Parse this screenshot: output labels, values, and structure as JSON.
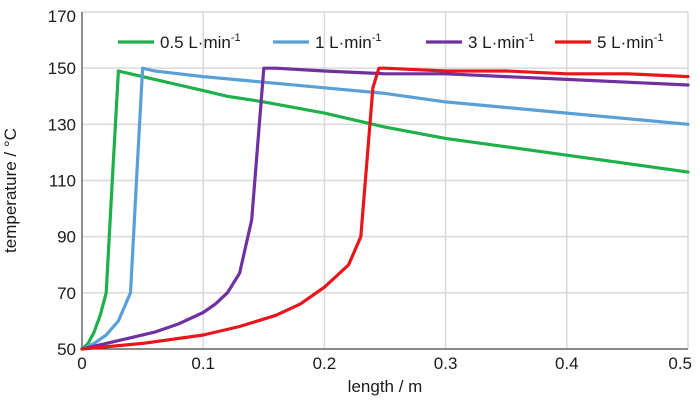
{
  "chart_data": {
    "type": "line",
    "xlabel": "length / m",
    "ylabel": "temperature / °C",
    "xlim": [
      0,
      0.5
    ],
    "ylim": [
      50,
      170
    ],
    "xticks": [
      0,
      0.1,
      0.2,
      0.3,
      0.4,
      0.5
    ],
    "xtick_labels": [
      "0",
      "0.1",
      "0.2",
      "0.3",
      "0.4",
      "0.5"
    ],
    "yticks": [
      50,
      70,
      90,
      110,
      130,
      150,
      170
    ],
    "ytick_labels": [
      "50",
      "70",
      "90",
      "110",
      "130",
      "150",
      "170"
    ],
    "grid": true,
    "legend_position": "top",
    "series": [
      {
        "name": "0.5 L·min",
        "name_sup": "-1",
        "color": "#1db04b",
        "x": [
          0,
          0.005,
          0.01,
          0.015,
          0.02,
          0.025,
          0.03,
          0.04,
          0.06,
          0.08,
          0.1,
          0.12,
          0.15,
          0.2,
          0.25,
          0.3,
          0.35,
          0.4,
          0.45,
          0.5
        ],
        "y": [
          50,
          52,
          56,
          62,
          70,
          110,
          149,
          148,
          146,
          144,
          142,
          140,
          138,
          134,
          129,
          125,
          122,
          119,
          116,
          113
        ]
      },
      {
        "name": "1 L·min",
        "name_sup": "-1",
        "color": "#5aa0d8",
        "x": [
          0,
          0.01,
          0.02,
          0.03,
          0.04,
          0.045,
          0.05,
          0.06,
          0.08,
          0.1,
          0.15,
          0.2,
          0.25,
          0.3,
          0.35,
          0.4,
          0.45,
          0.5
        ],
        "y": [
          50,
          52,
          55,
          60,
          70,
          110,
          150,
          149,
          148,
          147,
          145,
          143,
          141,
          138,
          136,
          134,
          132,
          130
        ]
      },
      {
        "name": "3 L·min",
        "name_sup": "-1",
        "color": "#7030a0",
        "x": [
          0,
          0.02,
          0.04,
          0.06,
          0.08,
          0.1,
          0.11,
          0.12,
          0.13,
          0.14,
          0.15,
          0.16,
          0.2,
          0.25,
          0.3,
          0.35,
          0.4,
          0.45,
          0.5
        ],
        "y": [
          50,
          52,
          54,
          56,
          59,
          63,
          66,
          70,
          77,
          96,
          150,
          150,
          149,
          148,
          148,
          147,
          146,
          145,
          144
        ]
      },
      {
        "name": "5 L·min",
        "name_sup": "-1",
        "color": "#e8161b",
        "x": [
          0,
          0.05,
          0.1,
          0.13,
          0.16,
          0.18,
          0.2,
          0.21,
          0.22,
          0.23,
          0.24,
          0.245,
          0.25,
          0.3,
          0.35,
          0.4,
          0.45,
          0.5
        ],
        "y": [
          50,
          52,
          55,
          58,
          62,
          66,
          72,
          76,
          80,
          90,
          143,
          150,
          150,
          149,
          149,
          148,
          148,
          147
        ]
      }
    ]
  }
}
